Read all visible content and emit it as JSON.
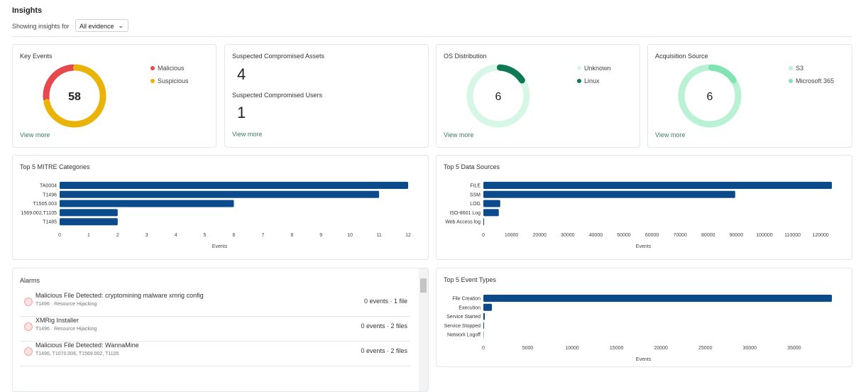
{
  "header": {
    "title": "Insights",
    "filter_label": "Showing insights for",
    "filter_value": "All evidence"
  },
  "key_events": {
    "type": "pie",
    "title": "Key Events",
    "total": 58,
    "categories": [
      "Malicious",
      "Suspicious"
    ],
    "values": [
      16,
      42
    ],
    "colors": [
      "#e5484d",
      "#e9b308"
    ],
    "link": "View more"
  },
  "compromised": {
    "assets_title": "Suspected Compromised Assets",
    "assets": 4,
    "users_title": "Suspected Compromised Users",
    "users": 1,
    "link": "View more"
  },
  "os": {
    "type": "pie",
    "title": "OS Distribution",
    "total": 6,
    "categories": [
      "Unknown",
      "Linux"
    ],
    "values": [
      5,
      1
    ],
    "colors": [
      "#d6f7e6",
      "#0e7a53"
    ],
    "link": "View more"
  },
  "acquisition": {
    "type": "pie",
    "title": "Acquisition Source",
    "total": 6,
    "categories": [
      "S3",
      "Microsoft 365"
    ],
    "values": [
      5,
      1
    ],
    "colors": [
      "#b9f1d4",
      "#7fe3b2"
    ],
    "link": "View more"
  },
  "mitre": {
    "type": "bar",
    "title": "Top 5 MITRE Categories",
    "categories": [
      "TA0004",
      "T1496",
      "T1505.003",
      "1569.002,T1105",
      "T1485"
    ],
    "values": [
      12,
      11,
      6,
      2,
      2
    ],
    "color": "#0b4a8b",
    "xlim": [
      0,
      12
    ],
    "xticks": [
      0,
      1,
      2,
      3,
      4,
      5,
      6,
      7,
      8,
      9,
      10,
      11,
      12
    ],
    "xlabel": "Events"
  },
  "data_sources": {
    "type": "bar",
    "title": "Top 5 Data Sources",
    "categories": [
      "FILE",
      "SSM",
      "LOG",
      "ISO-8601 Log",
      "Web Access log"
    ],
    "values": [
      124000,
      89600,
      6000,
      5500,
      250
    ],
    "color": "#0b4a8b",
    "xlim": [
      0,
      124000
    ],
    "xticks": [
      0,
      10000,
      20000,
      30000,
      40000,
      50000,
      60000,
      70000,
      80000,
      90000,
      100000,
      110000,
      120000
    ],
    "xlabel": "Events"
  },
  "event_types": {
    "type": "bar",
    "title": "Top 5 Event Types",
    "categories": [
      "File Creation",
      "Execution",
      "Service Started",
      "Service Stopped",
      "Network Logoff"
    ],
    "values": [
      39250,
      960,
      160,
      80,
      30
    ],
    "color": "#0b4a8b",
    "xlim": [
      0,
      39250
    ],
    "xticks": [
      0,
      5000,
      10000,
      15000,
      20000,
      25000,
      30000,
      35000
    ],
    "xlabel": "Events"
  },
  "alarms": {
    "title": "Alarms",
    "items": [
      {
        "title": "Malicious File Detected: cryptomining malware xmrig config",
        "tags": "T1496 · Resource Hijacking",
        "events": "0 events · 1 file"
      },
      {
        "title": "XMRig Installer",
        "tags": "T1496 · Resource Hijacking",
        "events": "0 events · 2 files"
      },
      {
        "title": "Malicious File Detected: WannaMine",
        "tags": "T1496, T1070.006, T1569.002, T1105",
        "events": "0 events · 2 files"
      }
    ]
  }
}
